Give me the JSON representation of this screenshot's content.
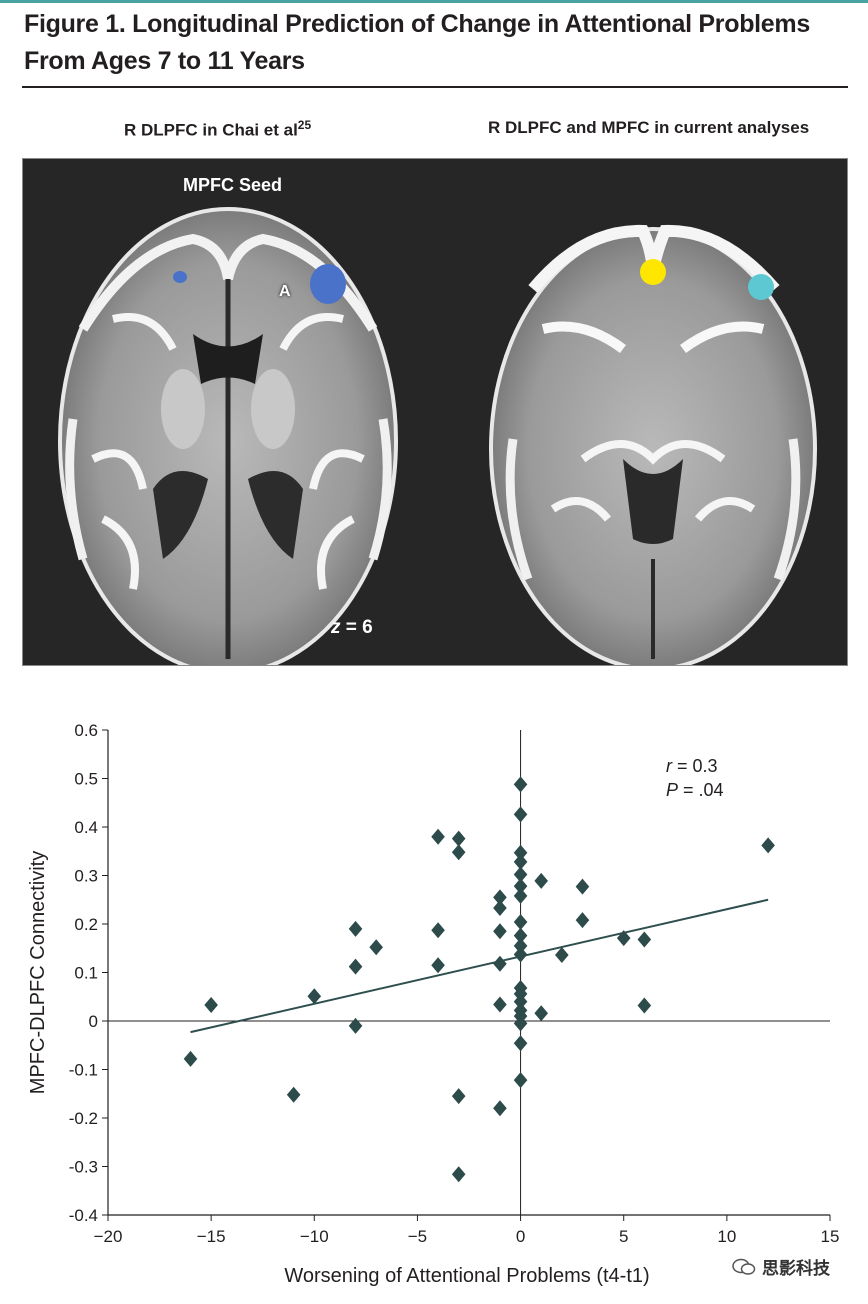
{
  "figure": {
    "title_line1": "Figure 1. Longitudinal Prediction of Change in Attentional Problems",
    "title_line2": "From Ages 7 to 11 Years"
  },
  "panels": {
    "left_label": "R DLPFC in Chai et al",
    "left_label_sup": "25",
    "right_label": "R DLPFC and MPFC in current analyses",
    "seed_label": "MPFC Seed",
    "a_marker": "A",
    "z_prefix": "z",
    "z_value": " = 6",
    "colors": {
      "blue_region": "#4a72c8",
      "yellow_roi": "#ffe600",
      "cyan_roi": "#5ec8d2",
      "background": "#262626"
    }
  },
  "watermark": {
    "text": "思影科技",
    "icon": "wechat-icon"
  },
  "chart_data": {
    "type": "scatter",
    "xlabel": "Worsening of Attentional Problems (t4-t1)",
    "ylabel": "MPFC-DLPFC Connectivity",
    "xlim": [
      -20,
      15
    ],
    "ylim": [
      -0.4,
      0.6
    ],
    "xticks": [
      -20,
      -15,
      -10,
      -5,
      0,
      5,
      10,
      15
    ],
    "yticks": [
      -0.4,
      -0.3,
      -0.2,
      -0.1,
      0,
      0.1,
      0.2,
      0.3,
      0.4,
      0.5,
      0.6
    ],
    "annotation": {
      "r_label": "r",
      "r_value": " = 0.3",
      "p_label": "P",
      "p_value": " = .04"
    },
    "marker_color": "#2d4b4b",
    "fit_line": [
      [
        -16,
        -0.023
      ],
      [
        12,
        0.25
      ]
    ],
    "points": [
      [
        -16,
        -0.078
      ],
      [
        -15,
        0.033
      ],
      [
        -11,
        -0.152
      ],
      [
        -10,
        0.051
      ],
      [
        -8,
        0.19
      ],
      [
        -8,
        0.112
      ],
      [
        -8,
        -0.01
      ],
      [
        -7,
        0.152
      ],
      [
        -4,
        0.38
      ],
      [
        -4,
        0.187
      ],
      [
        -4,
        0.115
      ],
      [
        -3,
        0.376
      ],
      [
        -3,
        0.348
      ],
      [
        -3,
        -0.155
      ],
      [
        -3,
        -0.316
      ],
      [
        -1,
        0.255
      ],
      [
        -1,
        0.233
      ],
      [
        -1,
        0.185
      ],
      [
        -1,
        0.118
      ],
      [
        -1,
        0.034
      ],
      [
        -1,
        -0.18
      ],
      [
        0,
        0.488
      ],
      [
        0,
        0.426
      ],
      [
        0,
        0.347
      ],
      [
        0,
        0.328
      ],
      [
        0,
        0.302
      ],
      [
        0,
        0.278
      ],
      [
        0,
        0.258
      ],
      [
        0,
        0.204
      ],
      [
        0,
        0.176
      ],
      [
        0,
        0.155
      ],
      [
        0,
        0.137
      ],
      [
        0,
        0.068
      ],
      [
        0,
        0.056
      ],
      [
        0,
        0.04
      ],
      [
        0,
        0.022
      ],
      [
        0,
        0.01
      ],
      [
        0,
        -0.005
      ],
      [
        0,
        -0.046
      ],
      [
        0,
        -0.122
      ],
      [
        1,
        0.289
      ],
      [
        1,
        0.016
      ],
      [
        2,
        0.136
      ],
      [
        3,
        0.277
      ],
      [
        3,
        0.208
      ],
      [
        5,
        0.171
      ],
      [
        6,
        0.168
      ],
      [
        6,
        0.032
      ],
      [
        12,
        0.362
      ]
    ]
  }
}
